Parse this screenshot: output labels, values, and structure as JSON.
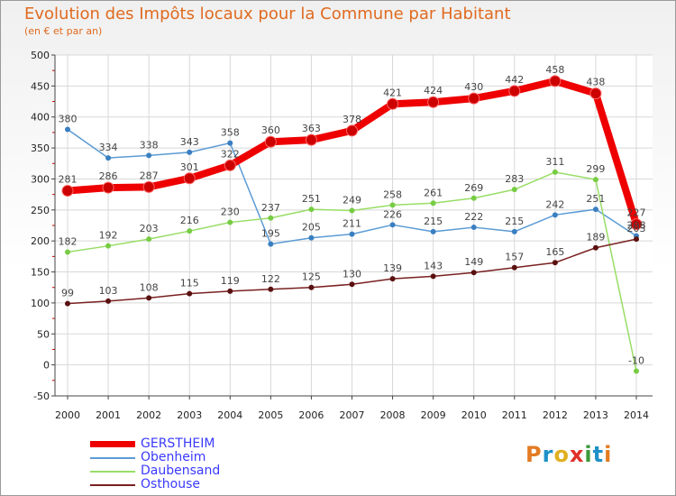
{
  "title": "Evolution des Impôts locaux pour la Commune par Habitant",
  "subtitle": "(en € et par an)",
  "logo": {
    "letters": [
      "P",
      "r",
      "o",
      "x",
      "i",
      "t",
      "i"
    ],
    "colors": [
      "#e37b22",
      "#1e90c8",
      "#e0b020",
      "#e0302a",
      "#3a9a3a",
      "#1e90c8",
      "#e37b22"
    ]
  },
  "chart_data": {
    "type": "line",
    "title": "Evolution des Impôts locaux pour la Commune par Habitant",
    "subtitle": "(en € et par an)",
    "xlabel": "",
    "ylabel": "",
    "ylim": [
      -50,
      500
    ],
    "yticks": [
      -50,
      0,
      50,
      100,
      150,
      200,
      250,
      300,
      350,
      400,
      450,
      500
    ],
    "grid": true,
    "legend_position": "bottom-left",
    "x": [
      "2000",
      "2001",
      "2002",
      "2003",
      "2004",
      "2005",
      "2006",
      "2007",
      "2008",
      "2009",
      "2010",
      "2011",
      "2012",
      "2013",
      "2014"
    ],
    "series": [
      {
        "name": "GERSTHEIM",
        "color": "#ee0000",
        "marker": "#cc0000",
        "bold": true,
        "values": [
          281,
          286,
          287,
          301,
          322,
          360,
          363,
          378,
          421,
          424,
          430,
          442,
          458,
          438,
          227
        ],
        "labels": [
          "281",
          "286",
          "287",
          "301",
          "322",
          "360",
          "363",
          "378",
          "421",
          "424",
          "430",
          "442",
          "458",
          "438",
          "227"
        ]
      },
      {
        "name": "Obenheim",
        "color": "#5b9bd5",
        "marker": "#3a7fc1",
        "bold": false,
        "values": [
          380,
          334,
          338,
          343,
          358,
          195,
          205,
          211,
          226,
          215,
          222,
          215,
          242,
          251,
          208
        ],
        "labels": [
          "380",
          "334",
          "338",
          "343",
          "358",
          "195",
          "205",
          "211",
          "226",
          "215",
          "222",
          "215",
          "242",
          "251",
          "208"
        ]
      },
      {
        "name": "Daubensand",
        "color": "#99dd66",
        "marker": "#77cc44",
        "bold": false,
        "values": [
          182,
          192,
          203,
          216,
          230,
          237,
          251,
          249,
          258,
          261,
          269,
          283,
          311,
          299,
          -10
        ],
        "labels": [
          "182",
          "192",
          "203",
          "216",
          "230",
          "237",
          "251",
          "249",
          "258",
          "261",
          "269",
          "283",
          "311",
          "299",
          "-10"
        ]
      },
      {
        "name": "Osthouse",
        "color": "#7a2020",
        "marker": "#5a1010",
        "bold": false,
        "values": [
          99,
          103,
          108,
          115,
          119,
          122,
          125,
          130,
          139,
          143,
          149,
          157,
          165,
          189,
          203
        ],
        "labels": [
          "99",
          "103",
          "108",
          "115",
          "119",
          "122",
          "125",
          "130",
          "139",
          "143",
          "149",
          "157",
          "165",
          "189",
          "203"
        ]
      }
    ]
  }
}
